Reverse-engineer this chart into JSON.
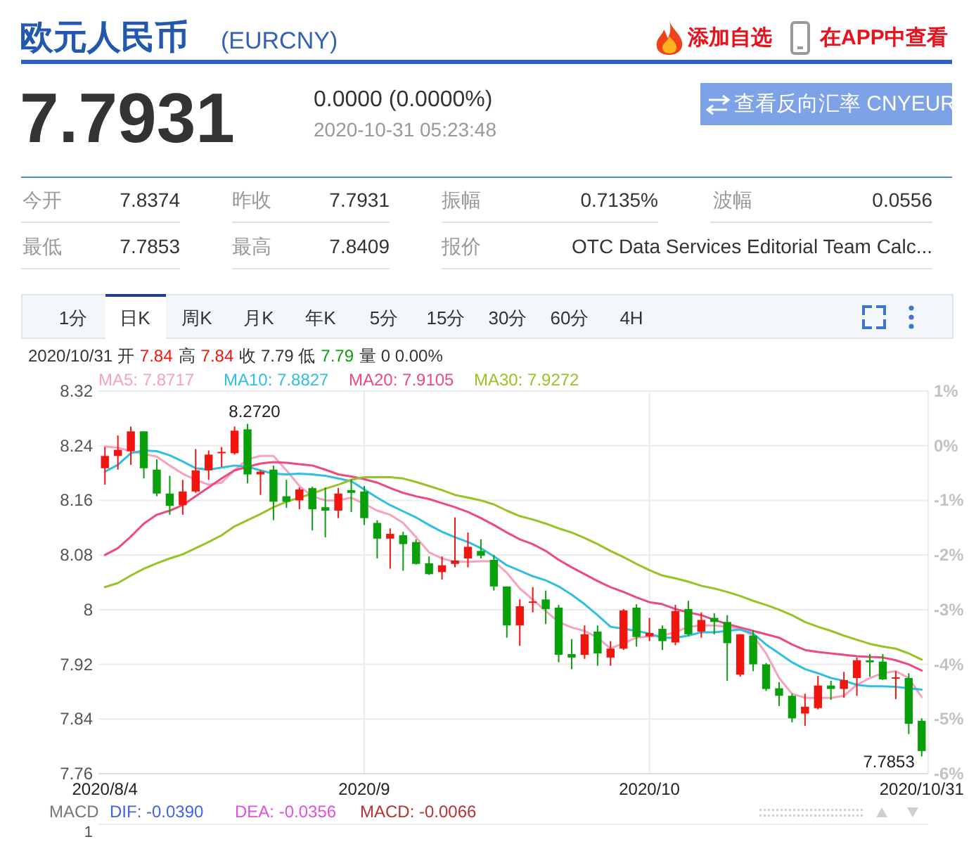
{
  "chart_data": [
    {
      "type": "other",
      "title": "欧元人民币",
      "subtitle": "(EURCNY)",
      "annotations": [
        "添加自选",
        "在APP中查看",
        "7.7931",
        "0.0000 (0.0000%)",
        "2020-10-31 05:23:48",
        "查看反向汇率 CNYEUR",
        "今开",
        "7.8374",
        "昨收",
        "7.7931",
        "振幅",
        "0.7135%",
        "波幅",
        "0.0556",
        "最低",
        "7.7853",
        "最高",
        "7.8409",
        "报价",
        "OTC Data Services Editorial Team Calc...",
        "1分",
        "日K",
        "周K",
        "月K",
        "年K",
        "5分",
        "15分",
        "30分",
        "60分",
        "4H",
        "2020/10/31 开",
        "7.84",
        "高",
        "7.84",
        "收 7.79 低",
        "7.79",
        "量 0 0.00%"
      ]
    },
    {
      "type": "candlestick",
      "categories": [
        "2020/8/4",
        null,
        null,
        null,
        null,
        null,
        null,
        null,
        null,
        null,
        null,
        null,
        null,
        null,
        null,
        null,
        null,
        null,
        null,
        null,
        "2020/9",
        null,
        null,
        null,
        null,
        null,
        null,
        null,
        null,
        null,
        null,
        null,
        null,
        null,
        null,
        null,
        null,
        null,
        null,
        null,
        null,
        null,
        "2020/10",
        null,
        null,
        null,
        null,
        null,
        null,
        null,
        null,
        null,
        null,
        null,
        null,
        null,
        null,
        null,
        null,
        null,
        null,
        null,
        null,
        "2020/10/31"
      ],
      "ohlc": [
        [
          8.207,
          8.238,
          8.183,
          8.225
        ],
        [
          8.225,
          8.255,
          8.205,
          8.234
        ],
        [
          8.232,
          8.268,
          8.212,
          8.261
        ],
        [
          8.261,
          8.261,
          8.192,
          8.207
        ],
        [
          8.205,
          8.22,
          8.166,
          8.17
        ],
        [
          8.17,
          8.196,
          8.139,
          8.152
        ],
        [
          8.153,
          8.19,
          8.139,
          8.173
        ],
        [
          8.173,
          8.235,
          8.171,
          8.204
        ],
        [
          8.204,
          8.233,
          8.19,
          8.227
        ],
        [
          8.229,
          8.238,
          8.209,
          8.231
        ],
        [
          8.229,
          8.268,
          8.227,
          8.262
        ],
        [
          8.264,
          8.272,
          8.185,
          8.198
        ],
        [
          8.198,
          8.204,
          8.168,
          8.202
        ],
        [
          8.205,
          8.211,
          8.131,
          8.158
        ],
        [
          8.166,
          8.19,
          8.149,
          8.158
        ],
        [
          8.16,
          8.179,
          8.147,
          8.176
        ],
        [
          8.178,
          8.18,
          8.116,
          8.147
        ],
        [
          8.15,
          8.179,
          8.106,
          8.145
        ],
        [
          8.145,
          8.178,
          8.134,
          8.17
        ],
        [
          8.175,
          8.191,
          8.143,
          8.171
        ],
        [
          8.173,
          8.181,
          8.124,
          8.134
        ],
        [
          8.127,
          8.131,
          8.075,
          8.104
        ],
        [
          8.104,
          8.119,
          8.06,
          8.111
        ],
        [
          8.109,
          8.114,
          8.057,
          8.096
        ],
        [
          8.099,
          8.103,
          8.066,
          8.067
        ],
        [
          8.068,
          8.078,
          8.051,
          8.052
        ],
        [
          8.055,
          8.078,
          8.044,
          8.065
        ],
        [
          8.067,
          8.135,
          8.062,
          8.072
        ],
        [
          8.075,
          8.113,
          8.062,
          8.092
        ],
        [
          8.086,
          8.103,
          8.075,
          8.079
        ],
        [
          8.073,
          8.08,
          8.028,
          8.034
        ],
        [
          8.034,
          8.034,
          7.959,
          7.977
        ],
        [
          7.977,
          8.015,
          7.947,
          8.005
        ],
        [
          8.011,
          8.033,
          7.996,
          8.012
        ],
        [
          8.015,
          8.028,
          7.979,
          8.001
        ],
        [
          8.003,
          8.007,
          7.923,
          7.934
        ],
        [
          7.935,
          7.957,
          7.913,
          7.93
        ],
        [
          7.934,
          7.977,
          7.928,
          7.964
        ],
        [
          7.968,
          7.977,
          7.918,
          7.936
        ],
        [
          7.93,
          7.954,
          7.918,
          7.943
        ],
        [
          7.943,
          8.001,
          7.941,
          7.999
        ],
        [
          8.003,
          8.008,
          7.946,
          7.96
        ],
        [
          7.961,
          7.988,
          7.954,
          7.966
        ],
        [
          7.972,
          7.977,
          7.941,
          7.954
        ],
        [
          7.952,
          8.007,
          7.948,
          7.998
        ],
        [
          8.001,
          8.013,
          7.962,
          7.964
        ],
        [
          7.968,
          7.996,
          7.959,
          7.985
        ],
        [
          7.988,
          7.995,
          7.964,
          7.982
        ],
        [
          7.982,
          7.992,
          7.896,
          7.951
        ],
        [
          7.905,
          7.964,
          7.902,
          7.964
        ],
        [
          7.962,
          7.97,
          7.91,
          7.92
        ],
        [
          7.92,
          7.922,
          7.881,
          7.884
        ],
        [
          7.885,
          7.894,
          7.859,
          7.874
        ],
        [
          7.874,
          7.877,
          7.835,
          7.841
        ],
        [
          7.848,
          7.877,
          7.83,
          7.858
        ],
        [
          7.856,
          7.903,
          7.854,
          7.889
        ],
        [
          7.889,
          7.896,
          7.868,
          7.884
        ],
        [
          7.884,
          7.909,
          7.871,
          7.897
        ],
        [
          7.9,
          7.93,
          7.874,
          7.926
        ],
        [
          7.926,
          7.935,
          7.902,
          7.923
        ],
        [
          7.924,
          7.935,
          7.897,
          7.898
        ],
        [
          7.899,
          7.91,
          7.869,
          7.901
        ],
        [
          7.9,
          7.907,
          7.818,
          7.833
        ],
        [
          7.8374,
          7.8409,
          7.7853,
          7.7931
        ]
      ],
      "colors": [
        "#f2150f",
        "#f2150f",
        "#f2150f",
        "#0aa00c",
        "#0aa00c",
        "#0aa00c",
        "#f2150f",
        "#f2150f",
        "#f2150f",
        "#f2150f",
        "#f2150f",
        "#0aa00c",
        "#f2150f",
        "#0aa00c",
        "#0aa00c",
        "#f2150f",
        "#0aa00c",
        "#0aa00c",
        "#f2150f",
        "#0aa00c",
        "#0aa00c",
        "#0aa00c",
        "#f2150f",
        "#0aa00c",
        "#0aa00c",
        "#0aa00c",
        "#f2150f",
        "#f2150f",
        "#f2150f",
        "#0aa00c",
        "#0aa00c",
        "#0aa00c",
        "#f2150f",
        "#f2150f",
        "#0aa00c",
        "#0aa00c",
        "#0aa00c",
        "#f2150f",
        "#0aa00c",
        "#f2150f",
        "#f2150f",
        "#0aa00c",
        "#f2150f",
        "#0aa00c",
        "#f2150f",
        "#0aa00c",
        "#f2150f",
        "#0aa00c",
        "#0aa00c",
        "#f2150f",
        "#0aa00c",
        "#0aa00c",
        "#0aa00c",
        "#0aa00c",
        "#f2150f",
        "#f2150f",
        "#0aa00c",
        "#f2150f",
        "#f2150f",
        "#0aa00c",
        "#0aa00c",
        "#f2150f",
        "#0aa00c",
        "#0aa00c"
      ],
      "series": [
        {
          "type": "line",
          "name": "MA5: 7.8717",
          "color": "#f6a3be",
          "values": [
            8.239,
            8.237,
            8.232,
            8.228,
            8.224,
            8.211,
            8.199,
            8.19,
            8.183,
            8.186,
            8.204,
            8.22,
            8.225,
            8.225,
            8.204,
            8.181,
            8.166,
            8.16,
            8.16,
            8.164,
            8.155,
            8.145,
            8.139,
            8.127,
            8.106,
            8.084,
            8.075,
            8.07,
            8.07,
            8.071,
            8.071,
            8.054,
            8.031,
            8.015,
            7.998,
            7.982,
            7.974,
            7.969,
            7.959,
            7.943,
            7.951,
            7.959,
            7.961,
            7.962,
            7.967,
            7.975,
            7.977,
            7.977,
            7.975,
            7.972,
            7.962,
            7.936,
            7.9,
            7.877,
            7.871,
            7.871,
            7.871,
            7.874,
            7.89,
            7.9,
            7.907,
            7.91,
            7.9,
            7.872
          ]
        },
        {
          "type": "line",
          "name": "MA10: 7.8827",
          "color": "#30bfe0",
          "values": [
            8.202,
            8.212,
            8.229,
            8.233,
            8.232,
            8.226,
            8.217,
            8.207,
            8.205,
            8.208,
            8.211,
            8.209,
            8.204,
            8.199,
            8.198,
            8.199,
            8.198,
            8.196,
            8.192,
            8.188,
            8.176,
            8.164,
            8.153,
            8.144,
            8.135,
            8.124,
            8.114,
            8.106,
            8.099,
            8.09,
            8.078,
            8.065,
            8.057,
            8.049,
            8.043,
            8.034,
            8.022,
            8.008,
            7.992,
            7.975,
            7.972,
            7.969,
            7.965,
            7.959,
            7.959,
            7.962,
            7.967,
            7.967,
            7.969,
            7.971,
            7.965,
            7.949,
            7.936,
            7.923,
            7.913,
            7.907,
            7.9,
            7.896,
            7.89,
            7.888,
            7.888,
            7.887,
            7.885,
            7.883
          ]
        },
        {
          "type": "line",
          "name": "MA20: 7.9105",
          "color": "#ec4a80",
          "values": [
            8.08,
            8.09,
            8.107,
            8.126,
            8.139,
            8.145,
            8.153,
            8.166,
            8.179,
            8.192,
            8.204,
            8.209,
            8.214,
            8.216,
            8.215,
            8.213,
            8.211,
            8.205,
            8.198,
            8.195,
            8.191,
            8.186,
            8.178,
            8.171,
            8.166,
            8.162,
            8.156,
            8.15,
            8.143,
            8.134,
            8.124,
            8.113,
            8.103,
            8.096,
            8.086,
            8.073,
            8.062,
            8.052,
            8.042,
            8.033,
            8.026,
            8.018,
            8.011,
            8.008,
            8.001,
            7.996,
            7.992,
            7.985,
            7.979,
            7.974,
            7.969,
            7.964,
            7.959,
            7.949,
            7.941,
            7.938,
            7.936,
            7.934,
            7.932,
            7.931,
            7.93,
            7.926,
            7.92,
            7.911
          ]
        },
        {
          "type": "line",
          "name": "MA30: 7.9272",
          "color": "#98c225",
          "values": [
            8.033,
            8.039,
            8.05,
            8.06,
            8.068,
            8.075,
            8.081,
            8.09,
            8.099,
            8.109,
            8.122,
            8.131,
            8.14,
            8.15,
            8.158,
            8.164,
            8.17,
            8.177,
            8.183,
            8.19,
            8.194,
            8.194,
            8.194,
            8.192,
            8.187,
            8.181,
            8.175,
            8.168,
            8.164,
            8.16,
            8.154,
            8.145,
            8.137,
            8.132,
            8.126,
            8.119,
            8.113,
            8.105,
            8.096,
            8.086,
            8.077,
            8.067,
            8.058,
            8.05,
            8.046,
            8.041,
            8.035,
            8.031,
            8.026,
            8.02,
            8.013,
            8.007,
            8.0,
            7.992,
            7.982,
            7.975,
            7.969,
            7.962,
            7.956,
            7.95,
            7.946,
            7.943,
            7.936,
            7.927
          ]
        }
      ],
      "ylim": [
        7.76,
        8.32
      ],
      "yticks": [
        8.32,
        8.24,
        8.16,
        8.08,
        8,
        7.92,
        7.84,
        7.76
      ],
      "y2lim": [
        -6,
        1
      ],
      "y2ticks": [
        {
          "value": 1,
          "label": "1%"
        },
        {
          "value": 0,
          "label": "0%"
        },
        {
          "value": -1,
          "label": "-1%"
        },
        {
          "value": -2,
          "label": "-2%"
        },
        {
          "value": -3,
          "label": "-3%"
        },
        {
          "value": -4,
          "label": "-4%"
        },
        {
          "value": -5,
          "label": "-5%"
        },
        {
          "value": -6,
          "label": "-6%"
        }
      ],
      "grid": true,
      "legend": "top left",
      "annotations": [
        {
          "text": "8.2720",
          "y": 8.272
        },
        {
          "text": "7.7853",
          "x": "2020/10/31",
          "y": 7.7853
        }
      ]
    },
    {
      "type": "other",
      "title": "MACD",
      "annotations": [
        "DIF: -0.0390",
        "DEA: -0.0356",
        "MACD: -0.0066",
        "1"
      ]
    }
  ]
}
